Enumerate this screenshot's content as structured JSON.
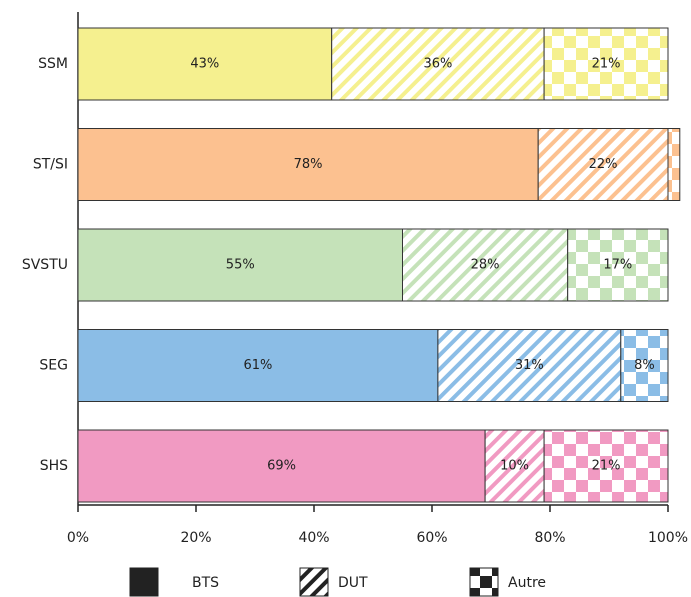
{
  "chart_data": {
    "type": "stacked_barh",
    "categories": [
      "SSM",
      "ST/SI",
      "SVSTU",
      "SEG",
      "SHS"
    ],
    "category_colors": [
      "#f5f08f",
      "#fcc190",
      "#c5e2b9",
      "#8bbde6",
      "#f19ac2"
    ],
    "series": [
      {
        "name": "BTS",
        "pattern": "solid",
        "color": "#222222",
        "values": [
          43,
          78,
          55,
          61,
          69
        ],
        "value_labels": [
          "43%",
          "78%",
          "55%",
          "61%",
          "69%"
        ]
      },
      {
        "name": "DUT",
        "pattern": "hatch",
        "color": "#222222",
        "values": [
          36,
          22,
          28,
          31,
          10
        ],
        "value_labels": [
          "36%",
          "22%",
          "28%",
          "31%",
          "10%"
        ]
      },
      {
        "name": "Autre",
        "pattern": "checker",
        "color": "#222222",
        "values": [
          21,
          2,
          17,
          8,
          21
        ],
        "value_labels": [
          "21%",
          null,
          "17%",
          "8%",
          "21%"
        ]
      }
    ],
    "xlim": [
      0,
      100
    ],
    "xticks": [
      {
        "value": 0,
        "label": "0%"
      },
      {
        "value": 20,
        "label": "20%"
      },
      {
        "value": 40,
        "label": "40%"
      },
      {
        "value": 60,
        "label": "60%"
      },
      {
        "value": 80,
        "label": "80%"
      },
      {
        "value": 100,
        "label": "100%"
      }
    ]
  }
}
